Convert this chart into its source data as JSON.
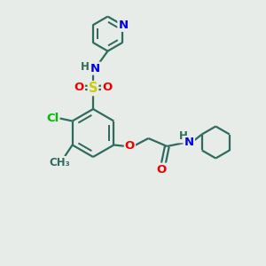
{
  "bg_color": "#e8ece8",
  "bond_color": "#2d6b5e",
  "bond_width": 1.6,
  "atom_colors": {
    "N": "#0000ee",
    "O": "#ee0000",
    "S": "#cccc00",
    "Cl": "#00bb00",
    "H": "#2d6b5e",
    "C": "#2d6b5e"
  },
  "font_size": 9.5
}
